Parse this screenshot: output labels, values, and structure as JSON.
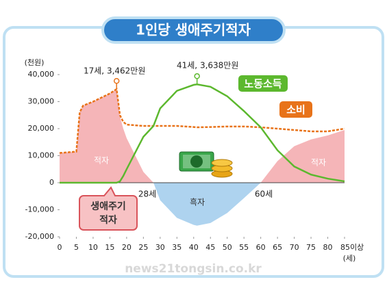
{
  "chart_data": {
    "type": "line",
    "title": "1인당 생애주기적자",
    "y_label": "(천원)",
    "x_label": "(세)",
    "x": [
      0,
      2,
      5,
      6,
      7,
      10,
      15,
      17,
      18,
      19,
      20,
      25,
      28,
      30,
      35,
      40,
      41,
      45,
      50,
      55,
      60,
      65,
      70,
      75,
      80,
      85
    ],
    "series": [
      {
        "name": "소비",
        "color": "#e8731a",
        "values": [
          11000,
          11200,
          11500,
          26000,
          28500,
          30000,
          33000,
          34620,
          25000,
          22500,
          21500,
          21000,
          21000,
          21000,
          21000,
          20600,
          20500,
          20600,
          20800,
          20800,
          20500,
          20000,
          19500,
          19000,
          19000,
          20000
        ]
      },
      {
        "name": "노동소득",
        "color": "#5cb82e",
        "values": [
          0,
          0,
          0,
          0,
          0,
          0,
          0,
          0,
          500,
          2500,
          5000,
          17000,
          21000,
          27500,
          34000,
          36200,
          36380,
          35500,
          32000,
          26500,
          20500,
          12000,
          6000,
          3000,
          1500,
          500
        ]
      }
    ],
    "xlim": [
      0,
      85
    ],
    "xticks": [
      0,
      5,
      10,
      15,
      20,
      25,
      30,
      35,
      40,
      45,
      50,
      55,
      60,
      65,
      70,
      75,
      80,
      {
        "value": 85,
        "label": "85이상"
      }
    ],
    "ylim": [
      -20000,
      40000
    ],
    "yticks": [
      {
        "value": 40000,
        "label": "40,000"
      },
      {
        "value": 30000,
        "label": "30,000"
      },
      {
        "value": 20000,
        "label": "20,000"
      },
      {
        "value": 10000,
        "label": "10,000"
      },
      0,
      {
        "value": -10000,
        "label": "-10,000"
      },
      {
        "value": -20000,
        "label": "-20,000"
      }
    ],
    "deficit_color": "#f5b5b8",
    "surplus_color": "#aed3ef",
    "annotations": [
      "17세, 3,462만원",
      "41세, 3,638만원",
      "28세",
      "60세",
      "적자",
      "적자",
      "흑자"
    ],
    "callout": [
      "생애주기",
      "적자"
    ],
    "watermark": "news21tongsin.co.kr"
  }
}
